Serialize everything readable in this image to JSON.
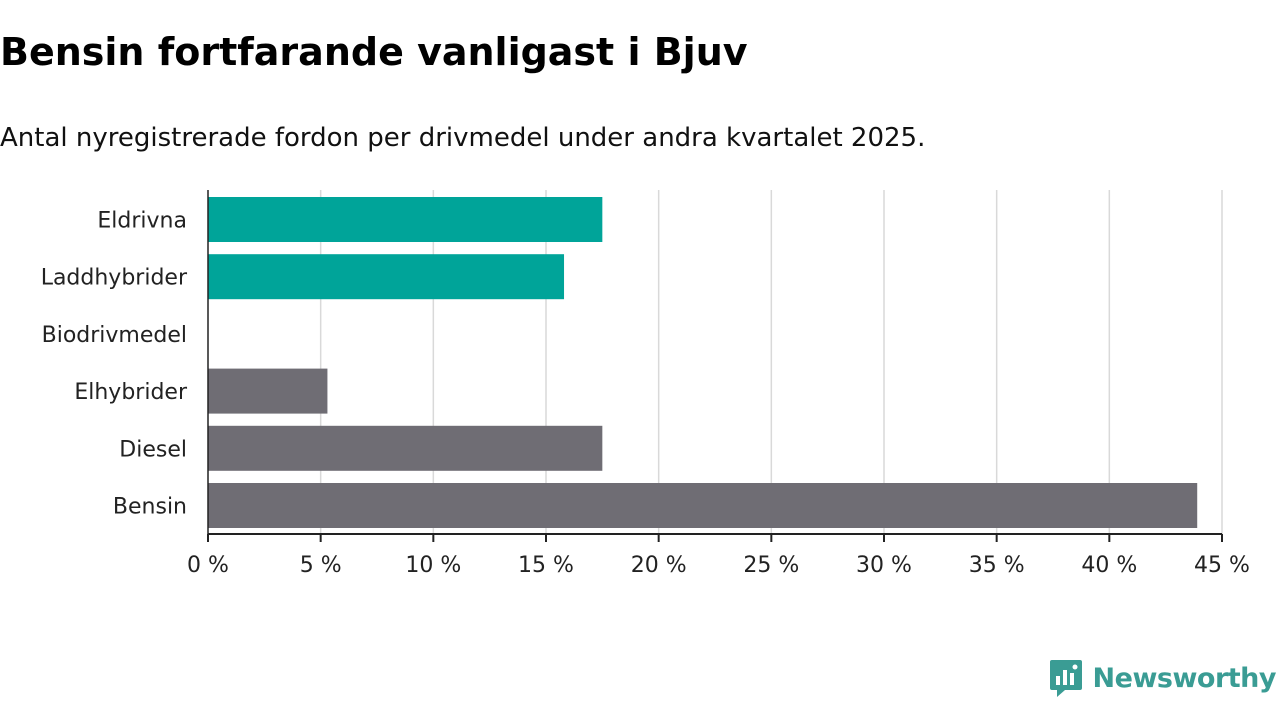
{
  "header": {
    "title": "Bensin fortfarande vanligast i Bjuv",
    "subtitle": "Antal nyregistrerade fordon per drivmedel under andra kvartalet 2025."
  },
  "brand": {
    "name": "Newsworthy",
    "icon": "newsworthy-logo-icon",
    "color": "#3a9c94"
  },
  "colors": {
    "highlight": "#00a499",
    "default": "#6f6d74",
    "grid": "#d9d9d9",
    "axis": "#222222"
  },
  "chart_data": {
    "type": "bar",
    "orientation": "horizontal",
    "title": "Bensin fortfarande vanligast i Bjuv",
    "subtitle": "Antal nyregistrerade fordon per drivmedel under andra kvartalet 2025.",
    "xlabel": "",
    "ylabel": "",
    "categories": [
      "Eldrivna",
      "Laddhybrider",
      "Biodrivmedel",
      "Elhybrider",
      "Diesel",
      "Bensin"
    ],
    "values": [
      17.5,
      15.8,
      0,
      5.3,
      17.5,
      43.9
    ],
    "highlighted": [
      true,
      true,
      false,
      false,
      false,
      false
    ],
    "unit": "%",
    "xlim": [
      0,
      45
    ],
    "ticks": [
      0,
      5,
      10,
      15,
      20,
      25,
      30,
      35,
      40,
      45
    ],
    "tick_labels": [
      "0 %",
      "5 %",
      "10 %",
      "15 %",
      "20 %",
      "25 %",
      "30 %",
      "35 %",
      "40 %",
      "45 %"
    ],
    "grid": true,
    "legend": "none"
  }
}
